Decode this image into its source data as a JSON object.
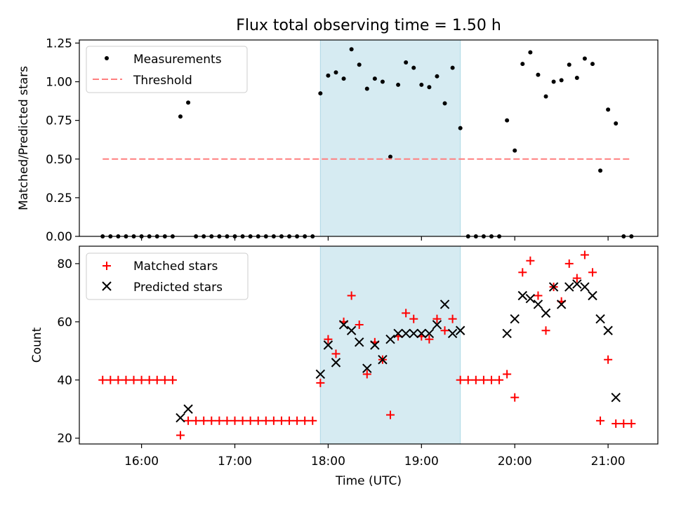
{
  "chart_data": [
    {
      "type": "scatter",
      "title": "Flux total observing time = 1.50 h",
      "xlabel": "",
      "ylabel": "Matched/Predicted stars",
      "xlim": [
        "15:20",
        "21:32"
      ],
      "ylim": [
        0,
        1.27
      ],
      "yticks": [
        "0.00",
        "0.25",
        "0.50",
        "0.75",
        "1.00",
        "1.25"
      ],
      "xticks": [
        "16:00",
        "17:00",
        "18:00",
        "19:00",
        "20:00",
        "21:00"
      ],
      "highlight_span": [
        "17:55",
        "19:25"
      ],
      "highlight_color": "#add8e6",
      "legend_position": "upper left",
      "series": [
        {
          "name": "Measurements",
          "style": "dots",
          "color": "#000000",
          "points": [
            [
              "15:35",
              0
            ],
            [
              "15:40",
              0
            ],
            [
              "15:45",
              0
            ],
            [
              "15:50",
              0
            ],
            [
              "15:55",
              0
            ],
            [
              "16:00",
              0
            ],
            [
              "16:05",
              0
            ],
            [
              "16:10",
              0
            ],
            [
              "16:15",
              0
            ],
            [
              "16:20",
              0
            ],
            [
              "16:25",
              0.775
            ],
            [
              "16:30",
              0.865
            ],
            [
              "16:35",
              0
            ],
            [
              "16:40",
              0
            ],
            [
              "16:45",
              0
            ],
            [
              "16:50",
              0
            ],
            [
              "16:55",
              0
            ],
            [
              "17:00",
              0
            ],
            [
              "17:05",
              0
            ],
            [
              "17:10",
              0
            ],
            [
              "17:15",
              0
            ],
            [
              "17:20",
              0
            ],
            [
              "17:25",
              0
            ],
            [
              "17:30",
              0
            ],
            [
              "17:35",
              0
            ],
            [
              "17:40",
              0
            ],
            [
              "17:45",
              0
            ],
            [
              "17:50",
              0
            ],
            [
              "17:55",
              0.925
            ],
            [
              "18:00",
              1.04
            ],
            [
              "18:05",
              1.06
            ],
            [
              "18:10",
              1.02
            ],
            [
              "18:15",
              1.21
            ],
            [
              "18:20",
              1.11
            ],
            [
              "18:25",
              0.955
            ],
            [
              "18:30",
              1.02
            ],
            [
              "18:35",
              1.0
            ],
            [
              "18:40",
              0.515
            ],
            [
              "18:45",
              0.98
            ],
            [
              "18:50",
              1.125
            ],
            [
              "18:55",
              1.09
            ],
            [
              "19:00",
              0.98
            ],
            [
              "19:05",
              0.965
            ],
            [
              "19:10",
              1.035
            ],
            [
              "19:15",
              0.86
            ],
            [
              "19:20",
              1.09
            ],
            [
              "19:25",
              0.7
            ],
            [
              "19:30",
              0
            ],
            [
              "19:35",
              0
            ],
            [
              "19:40",
              0
            ],
            [
              "19:45",
              0
            ],
            [
              "19:50",
              0
            ],
            [
              "19:55",
              0.75
            ],
            [
              "20:00",
              0.555
            ],
            [
              "20:05",
              1.115
            ],
            [
              "20:10",
              1.19
            ],
            [
              "20:15",
              1.045
            ],
            [
              "20:20",
              0.905
            ],
            [
              "20:25",
              1.0
            ],
            [
              "20:30",
              1.01
            ],
            [
              "20:35",
              1.11
            ],
            [
              "20:40",
              1.025
            ],
            [
              "20:45",
              1.15
            ],
            [
              "20:50",
              1.115
            ],
            [
              "20:55",
              0.425
            ],
            [
              "21:00",
              0.82
            ],
            [
              "21:05",
              0.73
            ],
            [
              "21:10",
              0
            ],
            [
              "21:15",
              0
            ]
          ]
        },
        {
          "name": "Threshold",
          "style": "dashed-line",
          "color": "#ff7f7f",
          "points": [
            [
              "15:35",
              0.5
            ],
            [
              "21:15",
              0.5
            ]
          ]
        }
      ]
    },
    {
      "type": "scatter",
      "title": "",
      "xlabel": "Time (UTC)",
      "ylabel": "Count",
      "xlim": [
        "15:20",
        "21:32"
      ],
      "ylim": [
        18,
        86
      ],
      "yticks": [
        "20",
        "40",
        "60",
        "80"
      ],
      "xticks": [
        "16:00",
        "17:00",
        "18:00",
        "19:00",
        "20:00",
        "21:00"
      ],
      "highlight_span": [
        "17:55",
        "19:25"
      ],
      "highlight_color": "#add8e6",
      "legend_position": "upper left",
      "series": [
        {
          "name": "Matched stars",
          "style": "plus",
          "color": "#ff0000",
          "points": [
            [
              "15:35",
              40
            ],
            [
              "15:40",
              40
            ],
            [
              "15:45",
              40
            ],
            [
              "15:50",
              40
            ],
            [
              "15:55",
              40
            ],
            [
              "16:00",
              40
            ],
            [
              "16:05",
              40
            ],
            [
              "16:10",
              40
            ],
            [
              "16:15",
              40
            ],
            [
              "16:20",
              40
            ],
            [
              "16:25",
              21
            ],
            [
              "16:30",
              26
            ],
            [
              "16:35",
              26
            ],
            [
              "16:40",
              26
            ],
            [
              "16:45",
              26
            ],
            [
              "16:50",
              26
            ],
            [
              "16:55",
              26
            ],
            [
              "17:00",
              26
            ],
            [
              "17:05",
              26
            ],
            [
              "17:10",
              26
            ],
            [
              "17:15",
              26
            ],
            [
              "17:20",
              26
            ],
            [
              "17:25",
              26
            ],
            [
              "17:30",
              26
            ],
            [
              "17:35",
              26
            ],
            [
              "17:40",
              26
            ],
            [
              "17:45",
              26
            ],
            [
              "17:50",
              26
            ],
            [
              "17:55",
              39
            ],
            [
              "18:00",
              54
            ],
            [
              "18:05",
              49
            ],
            [
              "18:10",
              60
            ],
            [
              "18:15",
              69
            ],
            [
              "18:20",
              59
            ],
            [
              "18:25",
              42
            ],
            [
              "18:30",
              53
            ],
            [
              "18:35",
              47
            ],
            [
              "18:40",
              28
            ],
            [
              "18:45",
              55
            ],
            [
              "18:50",
              63
            ],
            [
              "18:55",
              61
            ],
            [
              "19:00",
              55
            ],
            [
              "19:05",
              54
            ],
            [
              "19:10",
              61
            ],
            [
              "19:15",
              57
            ],
            [
              "19:20",
              61
            ],
            [
              "19:25",
              40
            ],
            [
              "19:30",
              40
            ],
            [
              "19:35",
              40
            ],
            [
              "19:40",
              40
            ],
            [
              "19:45",
              40
            ],
            [
              "19:50",
              40
            ],
            [
              "19:55",
              42
            ],
            [
              "20:00",
              34
            ],
            [
              "20:05",
              77
            ],
            [
              "20:10",
              81
            ],
            [
              "20:15",
              69
            ],
            [
              "20:20",
              57
            ],
            [
              "20:25",
              72
            ],
            [
              "20:30",
              67
            ],
            [
              "20:35",
              80
            ],
            [
              "20:40",
              75
            ],
            [
              "20:45",
              83
            ],
            [
              "20:50",
              77
            ],
            [
              "20:55",
              26
            ],
            [
              "21:00",
              47
            ],
            [
              "21:05",
              25
            ],
            [
              "21:10",
              25
            ],
            [
              "21:15",
              25
            ]
          ]
        },
        {
          "name": "Predicted stars",
          "style": "x",
          "color": "#000000",
          "points": [
            [
              "16:25",
              27
            ],
            [
              "16:30",
              30
            ],
            [
              "17:55",
              42
            ],
            [
              "18:00",
              52
            ],
            [
              "18:05",
              46
            ],
            [
              "18:10",
              59
            ],
            [
              "18:15",
              57
            ],
            [
              "18:20",
              53
            ],
            [
              "18:25",
              44
            ],
            [
              "18:30",
              52
            ],
            [
              "18:35",
              47
            ],
            [
              "18:40",
              54
            ],
            [
              "18:45",
              56
            ],
            [
              "18:50",
              56
            ],
            [
              "18:55",
              56
            ],
            [
              "19:00",
              56
            ],
            [
              "19:05",
              56
            ],
            [
              "19:10",
              59
            ],
            [
              "19:15",
              66
            ],
            [
              "19:20",
              56
            ],
            [
              "19:25",
              57
            ],
            [
              "19:55",
              56
            ],
            [
              "20:00",
              61
            ],
            [
              "20:05",
              69
            ],
            [
              "20:10",
              68
            ],
            [
              "20:15",
              66
            ],
            [
              "20:20",
              63
            ],
            [
              "20:25",
              72
            ],
            [
              "20:30",
              66
            ],
            [
              "20:35",
              72
            ],
            [
              "20:40",
              73
            ],
            [
              "20:45",
              72
            ],
            [
              "20:50",
              69
            ],
            [
              "20:55",
              61
            ],
            [
              "21:00",
              57
            ],
            [
              "21:05",
              34
            ]
          ]
        }
      ]
    }
  ]
}
